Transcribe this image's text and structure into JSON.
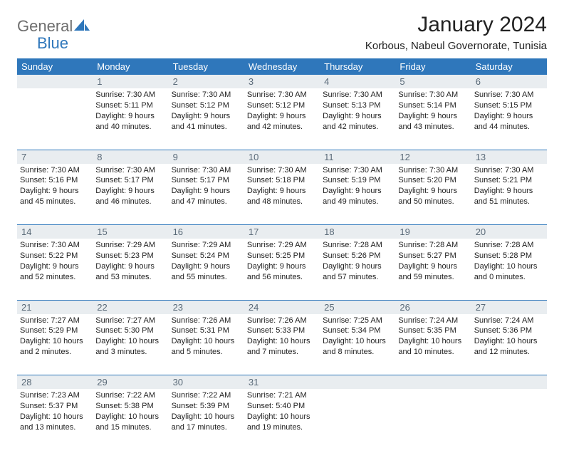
{
  "brand": {
    "general": "General",
    "blue": "Blue"
  },
  "title": "January 2024",
  "location": "Korbous, Nabeul Governorate, Tunisia",
  "colors": {
    "header_bg": "#2f77bb",
    "header_text": "#ffffff",
    "daynum_bg": "#e9edf0",
    "daynum_text": "#5a6a78",
    "body_text": "#222222",
    "page_bg": "#ffffff",
    "rule": "#2f77bb"
  },
  "fonts": {
    "title_size": 30,
    "location_size": 15,
    "dayhead_size": 13,
    "cell_size": 11
  },
  "day_headers": [
    "Sunday",
    "Monday",
    "Tuesday",
    "Wednesday",
    "Thursday",
    "Friday",
    "Saturday"
  ],
  "weeks": [
    {
      "nums": [
        "",
        "1",
        "2",
        "3",
        "4",
        "5",
        "6"
      ],
      "cells": [
        null,
        {
          "sunrise": "Sunrise: 7:30 AM",
          "sunset": "Sunset: 5:11 PM",
          "day1": "Daylight: 9 hours",
          "day2": "and 40 minutes."
        },
        {
          "sunrise": "Sunrise: 7:30 AM",
          "sunset": "Sunset: 5:12 PM",
          "day1": "Daylight: 9 hours",
          "day2": "and 41 minutes."
        },
        {
          "sunrise": "Sunrise: 7:30 AM",
          "sunset": "Sunset: 5:12 PM",
          "day1": "Daylight: 9 hours",
          "day2": "and 42 minutes."
        },
        {
          "sunrise": "Sunrise: 7:30 AM",
          "sunset": "Sunset: 5:13 PM",
          "day1": "Daylight: 9 hours",
          "day2": "and 42 minutes."
        },
        {
          "sunrise": "Sunrise: 7:30 AM",
          "sunset": "Sunset: 5:14 PM",
          "day1": "Daylight: 9 hours",
          "day2": "and 43 minutes."
        },
        {
          "sunrise": "Sunrise: 7:30 AM",
          "sunset": "Sunset: 5:15 PM",
          "day1": "Daylight: 9 hours",
          "day2": "and 44 minutes."
        }
      ]
    },
    {
      "nums": [
        "7",
        "8",
        "9",
        "10",
        "11",
        "12",
        "13"
      ],
      "cells": [
        {
          "sunrise": "Sunrise: 7:30 AM",
          "sunset": "Sunset: 5:16 PM",
          "day1": "Daylight: 9 hours",
          "day2": "and 45 minutes."
        },
        {
          "sunrise": "Sunrise: 7:30 AM",
          "sunset": "Sunset: 5:17 PM",
          "day1": "Daylight: 9 hours",
          "day2": "and 46 minutes."
        },
        {
          "sunrise": "Sunrise: 7:30 AM",
          "sunset": "Sunset: 5:17 PM",
          "day1": "Daylight: 9 hours",
          "day2": "and 47 minutes."
        },
        {
          "sunrise": "Sunrise: 7:30 AM",
          "sunset": "Sunset: 5:18 PM",
          "day1": "Daylight: 9 hours",
          "day2": "and 48 minutes."
        },
        {
          "sunrise": "Sunrise: 7:30 AM",
          "sunset": "Sunset: 5:19 PM",
          "day1": "Daylight: 9 hours",
          "day2": "and 49 minutes."
        },
        {
          "sunrise": "Sunrise: 7:30 AM",
          "sunset": "Sunset: 5:20 PM",
          "day1": "Daylight: 9 hours",
          "day2": "and 50 minutes."
        },
        {
          "sunrise": "Sunrise: 7:30 AM",
          "sunset": "Sunset: 5:21 PM",
          "day1": "Daylight: 9 hours",
          "day2": "and 51 minutes."
        }
      ]
    },
    {
      "nums": [
        "14",
        "15",
        "16",
        "17",
        "18",
        "19",
        "20"
      ],
      "cells": [
        {
          "sunrise": "Sunrise: 7:30 AM",
          "sunset": "Sunset: 5:22 PM",
          "day1": "Daylight: 9 hours",
          "day2": "and 52 minutes."
        },
        {
          "sunrise": "Sunrise: 7:29 AM",
          "sunset": "Sunset: 5:23 PM",
          "day1": "Daylight: 9 hours",
          "day2": "and 53 minutes."
        },
        {
          "sunrise": "Sunrise: 7:29 AM",
          "sunset": "Sunset: 5:24 PM",
          "day1": "Daylight: 9 hours",
          "day2": "and 55 minutes."
        },
        {
          "sunrise": "Sunrise: 7:29 AM",
          "sunset": "Sunset: 5:25 PM",
          "day1": "Daylight: 9 hours",
          "day2": "and 56 minutes."
        },
        {
          "sunrise": "Sunrise: 7:28 AM",
          "sunset": "Sunset: 5:26 PM",
          "day1": "Daylight: 9 hours",
          "day2": "and 57 minutes."
        },
        {
          "sunrise": "Sunrise: 7:28 AM",
          "sunset": "Sunset: 5:27 PM",
          "day1": "Daylight: 9 hours",
          "day2": "and 59 minutes."
        },
        {
          "sunrise": "Sunrise: 7:28 AM",
          "sunset": "Sunset: 5:28 PM",
          "day1": "Daylight: 10 hours",
          "day2": "and 0 minutes."
        }
      ]
    },
    {
      "nums": [
        "21",
        "22",
        "23",
        "24",
        "25",
        "26",
        "27"
      ],
      "cells": [
        {
          "sunrise": "Sunrise: 7:27 AM",
          "sunset": "Sunset: 5:29 PM",
          "day1": "Daylight: 10 hours",
          "day2": "and 2 minutes."
        },
        {
          "sunrise": "Sunrise: 7:27 AM",
          "sunset": "Sunset: 5:30 PM",
          "day1": "Daylight: 10 hours",
          "day2": "and 3 minutes."
        },
        {
          "sunrise": "Sunrise: 7:26 AM",
          "sunset": "Sunset: 5:31 PM",
          "day1": "Daylight: 10 hours",
          "day2": "and 5 minutes."
        },
        {
          "sunrise": "Sunrise: 7:26 AM",
          "sunset": "Sunset: 5:33 PM",
          "day1": "Daylight: 10 hours",
          "day2": "and 7 minutes."
        },
        {
          "sunrise": "Sunrise: 7:25 AM",
          "sunset": "Sunset: 5:34 PM",
          "day1": "Daylight: 10 hours",
          "day2": "and 8 minutes."
        },
        {
          "sunrise": "Sunrise: 7:24 AM",
          "sunset": "Sunset: 5:35 PM",
          "day1": "Daylight: 10 hours",
          "day2": "and 10 minutes."
        },
        {
          "sunrise": "Sunrise: 7:24 AM",
          "sunset": "Sunset: 5:36 PM",
          "day1": "Daylight: 10 hours",
          "day2": "and 12 minutes."
        }
      ]
    },
    {
      "nums": [
        "28",
        "29",
        "30",
        "31",
        "",
        "",
        ""
      ],
      "cells": [
        {
          "sunrise": "Sunrise: 7:23 AM",
          "sunset": "Sunset: 5:37 PM",
          "day1": "Daylight: 10 hours",
          "day2": "and 13 minutes."
        },
        {
          "sunrise": "Sunrise: 7:22 AM",
          "sunset": "Sunset: 5:38 PM",
          "day1": "Daylight: 10 hours",
          "day2": "and 15 minutes."
        },
        {
          "sunrise": "Sunrise: 7:22 AM",
          "sunset": "Sunset: 5:39 PM",
          "day1": "Daylight: 10 hours",
          "day2": "and 17 minutes."
        },
        {
          "sunrise": "Sunrise: 7:21 AM",
          "sunset": "Sunset: 5:40 PM",
          "day1": "Daylight: 10 hours",
          "day2": "and 19 minutes."
        },
        null,
        null,
        null
      ]
    }
  ]
}
